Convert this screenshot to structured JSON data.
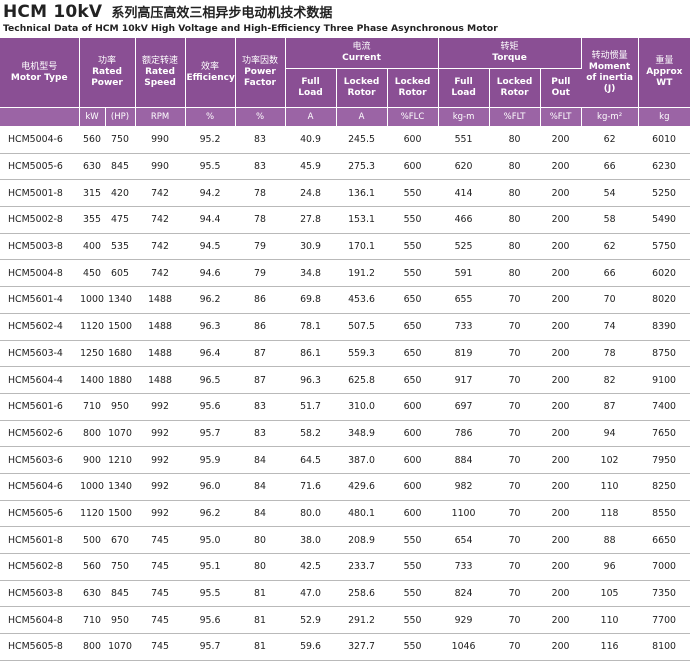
{
  "title": {
    "main": "HCM 10kV",
    "cn": "系列高压高效三相异步电动机技术数据",
    "subtitle": "Technical Data of HCM 10kV High Voltage and High-Efficiency Three Phase Asynchronous Motor"
  },
  "headers": {
    "motor_type": {
      "cn": "电机型号",
      "en": "Motor Type"
    },
    "rated_power": {
      "cn": "功率",
      "en1": "Rated",
      "en2": "Power"
    },
    "rated_speed": {
      "cn": "额定转速",
      "en1": "Rated",
      "en2": "Speed"
    },
    "efficiency": {
      "cn": "效率",
      "en": "Efficiency"
    },
    "power_factor": {
      "cn": "功率因数",
      "en1": "Power",
      "en2": "Factor"
    },
    "current": {
      "cn": "电流",
      "en": "Current"
    },
    "current_full_load": {
      "en1": "Full",
      "en2": "Load"
    },
    "current_locked_rotor_a": {
      "en1": "Locked",
      "en2": "Rotor"
    },
    "current_locked_rotor_flc": {
      "en1": "Locked",
      "en2": "Rotor"
    },
    "torque": {
      "cn": "转矩",
      "en": "Torque"
    },
    "torque_full_load": {
      "en1": "Full",
      "en2": "Load"
    },
    "torque_locked_rotor": {
      "en1": "Locked",
      "en2": "Rotor"
    },
    "torque_pull_out": {
      "en1": "Pull",
      "en2": "Out"
    },
    "inertia": {
      "cn": "转动惯量",
      "en1": "Moment",
      "en2": "of inertia",
      "en3": "(J)"
    },
    "weight": {
      "cn": "重量",
      "en1": "Approx",
      "en2": "WT"
    }
  },
  "units": {
    "kw": "kW",
    "hp": "(HP)",
    "rpm": "RPM",
    "eff": "%",
    "pf": "%",
    "fl_a": "A",
    "lr_a": "A",
    "lr_flc": "%FLC",
    "tq_fl": "kg-m",
    "tq_lr": "%FLT",
    "tq_po": "%FLT",
    "inertia": "kg-m²",
    "weight": "kg"
  },
  "rows": [
    [
      "HCM5004-6",
      "560",
      "750",
      "990",
      "95.2",
      "83",
      "40.9",
      "245.5",
      "600",
      "551",
      "80",
      "200",
      "62",
      "6010"
    ],
    [
      "HCM5005-6",
      "630",
      "845",
      "990",
      "95.5",
      "83",
      "45.9",
      "275.3",
      "600",
      "620",
      "80",
      "200",
      "66",
      "6230"
    ],
    [
      "HCM5001-8",
      "315",
      "420",
      "742",
      "94.2",
      "78",
      "24.8",
      "136.1",
      "550",
      "414",
      "80",
      "200",
      "54",
      "5250"
    ],
    [
      "HCM5002-8",
      "355",
      "475",
      "742",
      "94.4",
      "78",
      "27.8",
      "153.1",
      "550",
      "466",
      "80",
      "200",
      "58",
      "5490"
    ],
    [
      "HCM5003-8",
      "400",
      "535",
      "742",
      "94.5",
      "79",
      "30.9",
      "170.1",
      "550",
      "525",
      "80",
      "200",
      "62",
      "5750"
    ],
    [
      "HCM5004-8",
      "450",
      "605",
      "742",
      "94.6",
      "79",
      "34.8",
      "191.2",
      "550",
      "591",
      "80",
      "200",
      "66",
      "6020"
    ],
    [
      "HCM5601-4",
      "1000",
      "1340",
      "1488",
      "96.2",
      "86",
      "69.8",
      "453.6",
      "650",
      "655",
      "70",
      "200",
      "70",
      "8020"
    ],
    [
      "HCM5602-4",
      "1120",
      "1500",
      "1488",
      "96.3",
      "86",
      "78.1",
      "507.5",
      "650",
      "733",
      "70",
      "200",
      "74",
      "8390"
    ],
    [
      "HCM5603-4",
      "1250",
      "1680",
      "1488",
      "96.4",
      "87",
      "86.1",
      "559.3",
      "650",
      "819",
      "70",
      "200",
      "78",
      "8750"
    ],
    [
      "HCM5604-4",
      "1400",
      "1880",
      "1488",
      "96.5",
      "87",
      "96.3",
      "625.8",
      "650",
      "917",
      "70",
      "200",
      "82",
      "9100"
    ],
    [
      "HCM5601-6",
      "710",
      "950",
      "992",
      "95.6",
      "83",
      "51.7",
      "310.0",
      "600",
      "697",
      "70",
      "200",
      "87",
      "7400"
    ],
    [
      "HCM5602-6",
      "800",
      "1070",
      "992",
      "95.7",
      "83",
      "58.2",
      "348.9",
      "600",
      "786",
      "70",
      "200",
      "94",
      "7650"
    ],
    [
      "HCM5603-6",
      "900",
      "1210",
      "992",
      "95.9",
      "84",
      "64.5",
      "387.0",
      "600",
      "884",
      "70",
      "200",
      "102",
      "7950"
    ],
    [
      "HCM5604-6",
      "1000",
      "1340",
      "992",
      "96.0",
      "84",
      "71.6",
      "429.6",
      "600",
      "982",
      "70",
      "200",
      "110",
      "8250"
    ],
    [
      "HCM5605-6",
      "1120",
      "1500",
      "992",
      "96.2",
      "84",
      "80.0",
      "480.1",
      "600",
      "1100",
      "70",
      "200",
      "118",
      "8550"
    ],
    [
      "HCM5601-8",
      "500",
      "670",
      "745",
      "95.0",
      "80",
      "38.0",
      "208.9",
      "550",
      "654",
      "70",
      "200",
      "88",
      "6650"
    ],
    [
      "HCM5602-8",
      "560",
      "750",
      "745",
      "95.1",
      "80",
      "42.5",
      "233.7",
      "550",
      "733",
      "70",
      "200",
      "96",
      "7000"
    ],
    [
      "HCM5603-8",
      "630",
      "845",
      "745",
      "95.5",
      "81",
      "47.0",
      "258.6",
      "550",
      "824",
      "70",
      "200",
      "105",
      "7350"
    ],
    [
      "HCM5604-8",
      "710",
      "950",
      "745",
      "95.6",
      "81",
      "52.9",
      "291.2",
      "550",
      "929",
      "70",
      "200",
      "110",
      "7700"
    ],
    [
      "HCM5605-8",
      "800",
      "1070",
      "745",
      "95.7",
      "81",
      "59.6",
      "327.7",
      "550",
      "1046",
      "70",
      "200",
      "116",
      "8100"
    ]
  ]
}
